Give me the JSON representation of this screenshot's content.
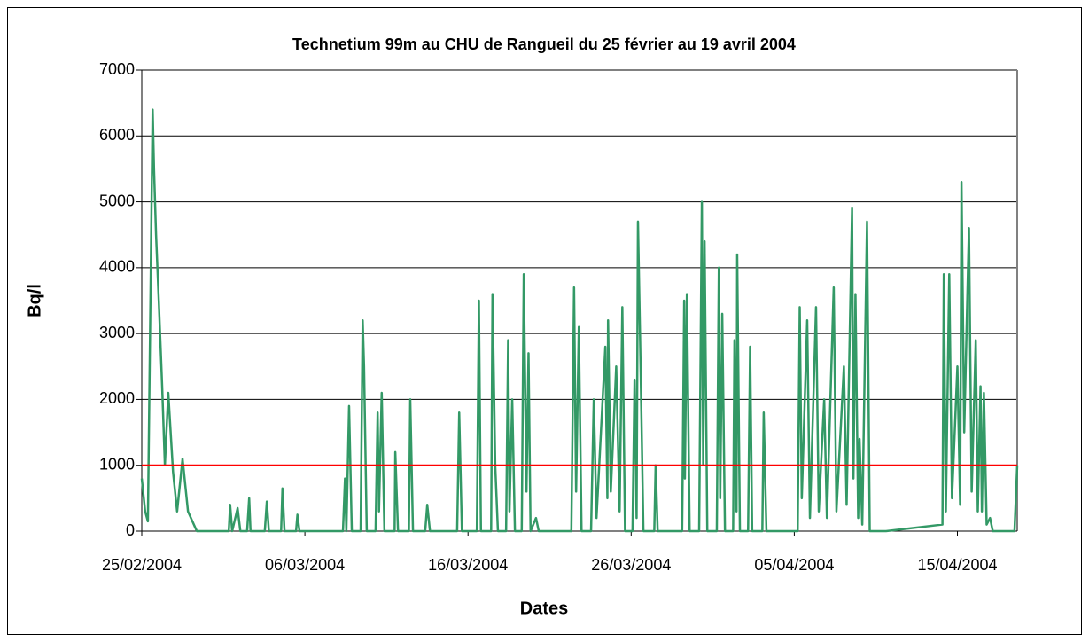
{
  "chart_data": {
    "type": "line",
    "title": "Technetium 99m au CHU de Rangueil du 25 février au 19 avril 2004",
    "x_label": "Dates",
    "y_label": "Bq/l",
    "xlim": [
      "2004-02-25T00:00",
      "2004-04-18T16:00"
    ],
    "xticks": [
      {
        "value": "2004-02-25T00:00",
        "label": "25/02/2004"
      },
      {
        "value": "2004-03-06T00:00",
        "label": "06/03/2004"
      },
      {
        "value": "2004-03-16T00:00",
        "label": "16/03/2004"
      },
      {
        "value": "2004-03-26T00:00",
        "label": "26/03/2004"
      },
      {
        "value": "2004-04-05T00:00",
        "label": "05/04/2004"
      },
      {
        "value": "2004-04-15T00:00",
        "label": "15/04/2004"
      }
    ],
    "ylim": [
      0,
      7000
    ],
    "yticks": [
      0,
      1000,
      2000,
      3000,
      4000,
      5000,
      6000,
      7000
    ],
    "grid": true,
    "reference_line": {
      "value": 1000,
      "color": "#ff0000"
    },
    "x": [
      "2004-02-25T00:00",
      "2004-02-25T05:00",
      "2004-02-25T09:00",
      "2004-02-25T16:00",
      "2004-02-25T18:00",
      "2004-02-25T21:00",
      "2004-02-26T01:00",
      "2004-02-26T06:00",
      "2004-02-26T10:00",
      "2004-02-26T15:00",
      "2004-02-26T22:00",
      "2004-02-27T04:00",
      "2004-02-27T12:00",
      "2004-02-27T20:00",
      "2004-02-28T09:00",
      "2004-03-01T08:00",
      "2004-03-01T10:00",
      "2004-03-01T13:00",
      "2004-03-01T21:00",
      "2004-03-02T01:00",
      "2004-03-02T11:00",
      "2004-03-02T14:00",
      "2004-03-02T16:00",
      "2004-03-03T13:00",
      "2004-03-03T16:00",
      "2004-03-03T19:00",
      "2004-03-04T13:00",
      "2004-03-04T15:00",
      "2004-03-04T18:00",
      "2004-03-05T11:00",
      "2004-03-05T13:00",
      "2004-03-05T16:00",
      "2004-03-08T08:00",
      "2004-03-08T11:00",
      "2004-03-08T13:00",
      "2004-03-08T17:00",
      "2004-03-08T21:00",
      "2004-03-09T10:00",
      "2004-03-09T13:00",
      "2004-03-09T15:00",
      "2004-03-09T19:00",
      "2004-03-10T08:00",
      "2004-03-10T11:00",
      "2004-03-10T13:00",
      "2004-03-10T17:00",
      "2004-03-10T21:00",
      "2004-03-11T12:00",
      "2004-03-11T13:00",
      "2004-03-11T17:00",
      "2004-03-12T09:00",
      "2004-03-12T11:00",
      "2004-03-12T15:00",
      "2004-03-13T09:00",
      "2004-03-13T12:00",
      "2004-03-13T16:00",
      "2004-03-15T08:00",
      "2004-03-15T11:00",
      "2004-03-15T15:00",
      "2004-03-16T13:00",
      "2004-03-16T16:00",
      "2004-03-16T19:00",
      "2004-03-17T10:00",
      "2004-03-17T12:00",
      "2004-03-17T16:00",
      "2004-03-17T20:00",
      "2004-03-18T08:00",
      "2004-03-18T11:00",
      "2004-03-18T13:00",
      "2004-03-18T17:00",
      "2004-03-18T21:00",
      "2004-03-19T07:00",
      "2004-03-19T10:00",
      "2004-03-19T14:00",
      "2004-03-19T17:00",
      "2004-03-19T20:00",
      "2004-03-20T04:00",
      "2004-03-20T08:00",
      "2004-03-22T08:00",
      "2004-03-22T12:00",
      "2004-03-22T15:00",
      "2004-03-22T19:00",
      "2004-03-22T23:00",
      "2004-03-23T13:00",
      "2004-03-23T17:00",
      "2004-03-23T21:00",
      "2004-03-24T10:00",
      "2004-03-24T13:00",
      "2004-03-24T14:00",
      "2004-03-24T18:00",
      "2004-03-25T02:00",
      "2004-03-25T07:00",
      "2004-03-25T11:00",
      "2004-03-25T15:00",
      "2004-03-26T02:00",
      "2004-03-26T05:00",
      "2004-03-26T08:00",
      "2004-03-26T10:00",
      "2004-03-26T13:00",
      "2004-03-26T18:00",
      "2004-03-27T10:00",
      "2004-03-27T12:00",
      "2004-03-27T15:00",
      "2004-03-29T03:00",
      "2004-03-29T06:00",
      "2004-03-29T07:00",
      "2004-03-29T10:00",
      "2004-03-29T14:00",
      "2004-03-30T04:00",
      "2004-03-30T08:00",
      "2004-03-30T10:00",
      "2004-03-30T12:00",
      "2004-03-30T16:00",
      "2004-03-31T06:00",
      "2004-03-31T09:00",
      "2004-03-31T11:00",
      "2004-03-31T14:00",
      "2004-03-31T18:00",
      "2004-04-01T06:00",
      "2004-04-01T08:00",
      "2004-04-01T11:00",
      "2004-04-01T12:00",
      "2004-04-01T16:00",
      "2004-04-02T04:00",
      "2004-04-02T07:00",
      "2004-04-02T10:00",
      "2004-04-03T01:00",
      "2004-04-03T03:00",
      "2004-04-03T07:00",
      "2004-04-05T05:00",
      "2004-04-05T08:00",
      "2004-04-05T11:00",
      "2004-04-05T19:00",
      "2004-04-05T23:00",
      "2004-04-06T08:00",
      "2004-04-06T12:00",
      "2004-04-06T20:00",
      "2004-04-07T00:00",
      "2004-04-07T10:00",
      "2004-04-07T14:00",
      "2004-04-08T01:00",
      "2004-04-08T05:00",
      "2004-04-08T13:00",
      "2004-04-08T15:00",
      "2004-04-08T18:00",
      "2004-04-08T22:00",
      "2004-04-09T00:00",
      "2004-04-09T04:00",
      "2004-04-09T11:00",
      "2004-04-09T15:00",
      "2004-04-10T15:00",
      "2004-04-14T02:00",
      "2004-04-14T04:00",
      "2004-04-14T07:00",
      "2004-04-14T12:00",
      "2004-04-14T16:00",
      "2004-04-15T00:00",
      "2004-04-15T04:00",
      "2004-04-15T06:00",
      "2004-04-15T10:00",
      "2004-04-15T17:00",
      "2004-04-15T21:00",
      "2004-04-16T03:00",
      "2004-04-16T06:00",
      "2004-04-16T10:00",
      "2004-04-16T12:00",
      "2004-04-16T15:00",
      "2004-04-16T19:00",
      "2004-04-17T00:00",
      "2004-04-17T04:00",
      "2004-04-18T12:00",
      "2004-04-18T16:00"
    ],
    "series": [
      {
        "color": "#339966",
        "values": [
          800,
          300,
          150,
          6400,
          5500,
          4500,
          3500,
          2200,
          1000,
          2100,
          900,
          300,
          1100,
          300,
          0,
          0,
          400,
          0,
          350,
          0,
          0,
          500,
          0,
          0,
          450,
          0,
          0,
          650,
          0,
          0,
          250,
          0,
          0,
          800,
          0,
          1900,
          0,
          0,
          3200,
          2500,
          0,
          0,
          1800,
          300,
          2100,
          0,
          0,
          1200,
          0,
          0,
          2000,
          0,
          0,
          400,
          0,
          0,
          1800,
          0,
          0,
          3500,
          0,
          0,
          3600,
          1000,
          0,
          0,
          2900,
          300,
          2000,
          0,
          0,
          3900,
          600,
          2700,
          0,
          200,
          0,
          0,
          3700,
          600,
          3100,
          0,
          0,
          2000,
          200,
          2800,
          500,
          3200,
          600,
          2500,
          300,
          3400,
          0,
          0,
          2300,
          200,
          4700,
          3000,
          0,
          0,
          1000,
          0,
          0,
          3500,
          800,
          3600,
          0,
          0,
          5000,
          1000,
          4400,
          0,
          0,
          4000,
          500,
          3300,
          0,
          0,
          2900,
          300,
          4200,
          0,
          0,
          2800,
          0,
          0,
          1800,
          0,
          0,
          3400,
          500,
          3200,
          200,
          3400,
          300,
          2000,
          200,
          3700,
          300,
          2500,
          400,
          4900,
          800,
          3600,
          200,
          1400,
          100,
          4700,
          0,
          0,
          100,
          3900,
          300,
          3900,
          500,
          2500,
          400,
          5300,
          1500,
          4600,
          600,
          2900,
          300,
          2200,
          300,
          2100,
          100,
          200,
          0,
          0,
          1000
        ]
      }
    ]
  }
}
